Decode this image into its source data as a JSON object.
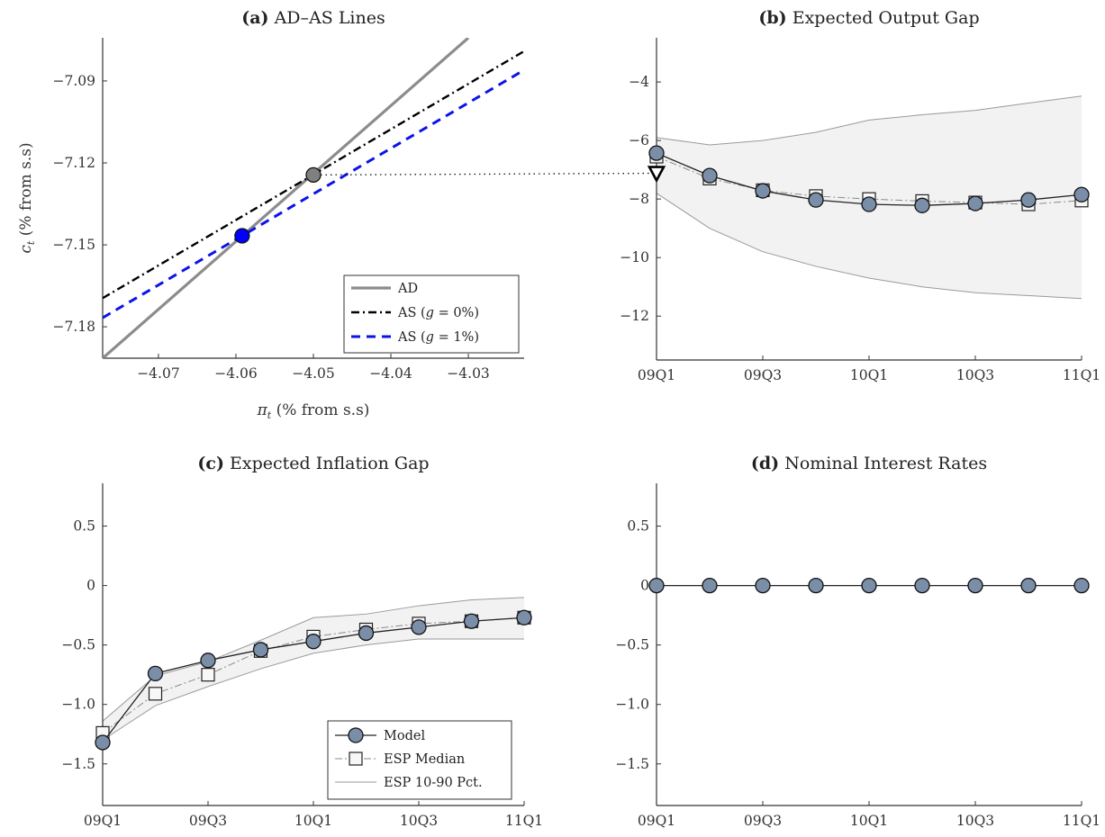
{
  "chart_data": [
    {
      "id": "a",
      "type": "line",
      "title_label": "(a)",
      "title": "AD–AS Lines",
      "xlabel": "π_t (% from s.s)",
      "ylabel": "c_t (% from s.s)",
      "xlim": [
        -4.0772,
        -4.0228
      ],
      "ylim": [
        -7.1915,
        -7.0742
      ],
      "xticks": [
        -4.07,
        -4.06,
        -4.05,
        -4.04,
        -4.03
      ],
      "xtick_labels": [
        "−4.07",
        "−4.06",
        "−4.05",
        "−4.04",
        "−4.03"
      ],
      "yticks": [
        -7.09,
        -7.12,
        -7.15,
        -7.18
      ],
      "ytick_labels": [
        "−7.09",
        "−7.12",
        "−7.15",
        "−7.18"
      ],
      "grid": false,
      "legend_position": "bottom-right",
      "series": [
        {
          "name": "AD",
          "legend": "AD",
          "style": "solid",
          "color": "#8c8c8c",
          "x": [
            -4.0772,
            -4.03
          ],
          "y": [
            -7.1915,
            -7.0742
          ]
        },
        {
          "name": "AS g0",
          "legend": "AS  (g = 0%)",
          "style": "dashdot",
          "color": "#000000",
          "x": [
            -4.0772,
            -4.0228
          ],
          "y": [
            -7.1695,
            -7.0791
          ]
        },
        {
          "name": "AS g1",
          "legend": "AS  (g = 1%)",
          "style": "dashed",
          "color": "#0b14e8",
          "x": [
            -4.0772,
            -4.0228
          ],
          "y": [
            -7.1767,
            -7.086
          ]
        }
      ],
      "points": [
        {
          "name": "equilibrium-g0",
          "x": -4.05,
          "y": -7.1244,
          "color": "#808080"
        },
        {
          "name": "equilibrium-g1",
          "x": -4.0592,
          "y": -7.1467,
          "color": "#0000ff"
        }
      ],
      "connector": {
        "from_y": -7.1244,
        "to_panel": "b",
        "to_y": -7.12
      }
    },
    {
      "id": "b",
      "type": "line",
      "title_label": "(b)",
      "title": "Expected Output Gap",
      "xlabel": "",
      "ylabel": "",
      "categories": [
        "09Q1",
        "09Q2",
        "09Q3",
        "09Q4",
        "10Q1",
        "10Q2",
        "10Q3",
        "10Q4",
        "11Q1"
      ],
      "xtick_labels": [
        "09Q1",
        "09Q3",
        "10Q1",
        "10Q3",
        "11Q1"
      ],
      "xtick_index": [
        0,
        2,
        4,
        6,
        8
      ],
      "ylim": [
        -13.5,
        -2.49
      ],
      "yticks": [
        -4,
        -6,
        -8,
        -10,
        -12
      ],
      "ytick_labels": [
        "−4",
        "−6",
        "−8",
        "−10",
        "−12"
      ],
      "grid": false,
      "series": [
        {
          "name": "Model",
          "values": [
            -6.43,
            -7.2,
            -7.72,
            -8.03,
            -8.18,
            -8.22,
            -8.15,
            -8.03,
            -7.85
          ]
        },
        {
          "name": "ESP Median",
          "values": [
            -6.55,
            -7.3,
            -7.7,
            -7.9,
            -8.0,
            -8.07,
            -8.12,
            -8.18,
            -8.05
          ]
        },
        {
          "name": "ESP 10 Pct.",
          "values": [
            -7.8,
            -9.0,
            -9.8,
            -10.3,
            -10.7,
            -11.0,
            -11.2,
            -11.3,
            -11.4
          ]
        },
        {
          "name": "ESP 90 Pct.",
          "values": [
            -5.9,
            -6.15,
            -6.0,
            -5.72,
            -5.3,
            -5.12,
            -4.97,
            -4.72,
            -4.48
          ]
        }
      ],
      "marker_triangle": {
        "x_index": 0,
        "y": -7.12
      }
    },
    {
      "id": "c",
      "type": "line",
      "title_label": "(c)",
      "title": "Expected Inflation Gap",
      "xlabel": "",
      "ylabel": "",
      "categories": [
        "09Q1",
        "09Q2",
        "09Q3",
        "09Q4",
        "10Q1",
        "10Q2",
        "10Q3",
        "10Q4",
        "11Q1"
      ],
      "xtick_labels": [
        "09Q1",
        "09Q3",
        "10Q1",
        "10Q3",
        "11Q1"
      ],
      "xtick_index": [
        0,
        2,
        4,
        6,
        8
      ],
      "ylim": [
        -1.85,
        0.86
      ],
      "yticks": [
        0.5,
        0,
        -0.5,
        -1.0,
        -1.5
      ],
      "ytick_labels": [
        "0.5",
        "0",
        "−0.5",
        "−1.0",
        "−1.5"
      ],
      "grid": false,
      "legend_position": "bottom-right",
      "legend": [
        "Model",
        "ESP Median",
        "ESP 10-90 Pct."
      ],
      "series": [
        {
          "name": "Model",
          "values": [
            -1.32,
            -0.74,
            -0.63,
            -0.54,
            -0.47,
            -0.4,
            -0.35,
            -0.3,
            -0.27
          ]
        },
        {
          "name": "ESP Median",
          "values": [
            -1.24,
            -0.91,
            -0.75,
            -0.55,
            -0.43,
            -0.37,
            -0.32,
            -0.3,
            -0.27
          ]
        },
        {
          "name": "ESP 10 Pct.",
          "values": [
            -1.3,
            -1.01,
            -0.85,
            -0.7,
            -0.57,
            -0.5,
            -0.45,
            -0.45,
            -0.45
          ]
        },
        {
          "name": "ESP 90 Pct.",
          "values": [
            -1.14,
            -0.76,
            -0.64,
            -0.46,
            -0.27,
            -0.24,
            -0.17,
            -0.12,
            -0.1
          ]
        }
      ]
    },
    {
      "id": "d",
      "type": "line",
      "title_label": "(d)",
      "title": "Nominal Interest Rates",
      "xlabel": "",
      "ylabel": "",
      "categories": [
        "09Q1",
        "09Q2",
        "09Q3",
        "09Q4",
        "10Q1",
        "10Q2",
        "10Q3",
        "10Q4",
        "11Q1"
      ],
      "xtick_labels": [
        "09Q1",
        "09Q3",
        "10Q1",
        "10Q3",
        "11Q1"
      ],
      "xtick_index": [
        0,
        2,
        4,
        6,
        8
      ],
      "ylim": [
        -1.85,
        0.86
      ],
      "yticks": [
        0.5,
        0,
        -0.5,
        -1.0,
        -1.5
      ],
      "ytick_labels": [
        "0.5",
        "0",
        "−0.5",
        "−1.0",
        "−1.5"
      ],
      "grid": false,
      "series": [
        {
          "name": "Model",
          "values": [
            0,
            0,
            0,
            0,
            0,
            0,
            0,
            0,
            0
          ]
        }
      ]
    }
  ],
  "colors": {
    "model_marker": "#7b8ea8",
    "band_fill": "#f2f2f2",
    "band_line": "#9a9a9a",
    "median_line": "#8a8a8a",
    "axis": "#333333"
  }
}
